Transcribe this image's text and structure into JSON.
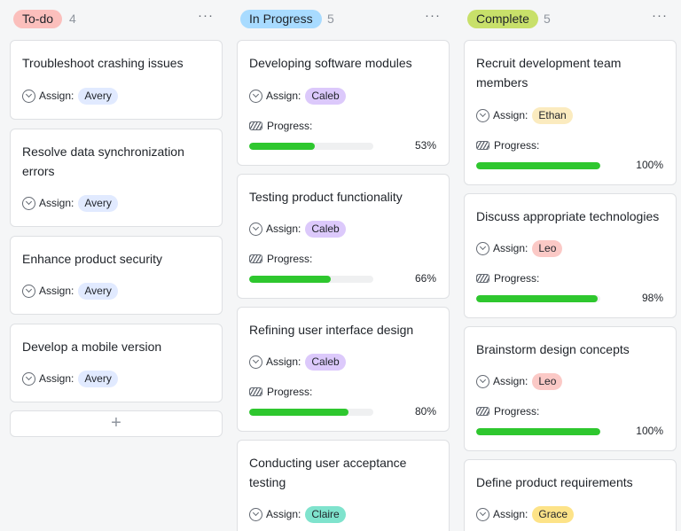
{
  "colors": {
    "todo_pill": "#fbbfbc",
    "inprogress_pill": "#a8dbff",
    "complete_pill": "#c8e06a",
    "avery": "#e1eaff",
    "caleb": "#dcc9fb",
    "claire": "#7fe3cd",
    "ethan": "#fbebbf",
    "leo": "#fbc9c6",
    "grace": "#fde388",
    "progress": "#2ec72e"
  },
  "labels": {
    "assign": "Assign:",
    "progress": "Progress:",
    "more": "···",
    "add": "+"
  },
  "columns": [
    {
      "name": "To-do",
      "count": "4",
      "cards": [
        {
          "title": "Troubleshoot crashing issues",
          "assignee": "Avery"
        },
        {
          "title": "Resolve data synchronization errors",
          "assignee": "Avery"
        },
        {
          "title": "Enhance product security",
          "assignee": "Avery"
        },
        {
          "title": "Develop a mobile version",
          "assignee": "Avery"
        }
      ]
    },
    {
      "name": "In Progress",
      "count": "5",
      "cards": [
        {
          "title": "Developing software modules",
          "assignee": "Caleb",
          "progress": 53,
          "progress_label": "53%"
        },
        {
          "title": "Testing product functionality",
          "assignee": "Caleb",
          "progress": 66,
          "progress_label": "66%"
        },
        {
          "title": "Refining user interface design",
          "assignee": "Caleb",
          "progress": 80,
          "progress_label": "80%"
        },
        {
          "title": "Conducting user acceptance testing",
          "assignee": "Claire"
        }
      ]
    },
    {
      "name": "Complete",
      "count": "5",
      "cards": [
        {
          "title": "Recruit development team members",
          "assignee": "Ethan",
          "progress": 100,
          "progress_label": "100%"
        },
        {
          "title": "Discuss appropriate technologies",
          "assignee": "Leo",
          "progress": 98,
          "progress_label": "98%"
        },
        {
          "title": "Brainstorm design concepts",
          "assignee": "Leo",
          "progress": 100,
          "progress_label": "100%"
        },
        {
          "title": "Define product requirements",
          "assignee": "Grace"
        }
      ]
    }
  ]
}
